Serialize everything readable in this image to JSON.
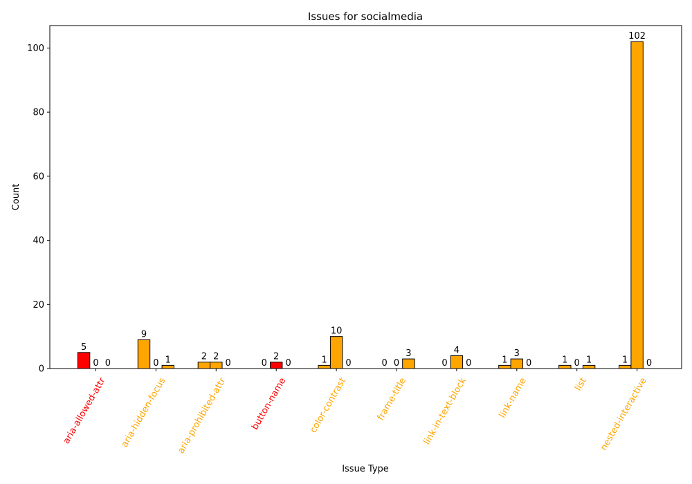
{
  "chart_data": {
    "type": "bar",
    "title": "Issues for socialmedia",
    "xlabel": "Issue Type",
    "ylabel": "Count",
    "ylim": [
      0,
      107
    ],
    "yticks": [
      0,
      20,
      40,
      60,
      80,
      100
    ],
    "grid": false,
    "categories": [
      "aria-allowed-attr",
      "aria-hidden-focus",
      "aria-prohibited-attr",
      "button-name",
      "color-contrast",
      "frame-title",
      "link-in-text-block",
      "link-name",
      "list",
      "nested-interactive"
    ],
    "category_colors": [
      "#ff0000",
      "#ffa500",
      "#ffa500",
      "#ff0000",
      "#ffa500",
      "#ffa500",
      "#ffa500",
      "#ffa500",
      "#ffa500",
      "#ffa500"
    ],
    "series": [
      {
        "values": [
          5,
          9,
          2,
          0,
          1,
          0,
          0,
          1,
          1,
          1
        ]
      },
      {
        "values": [
          0,
          0,
          2,
          2,
          10,
          0,
          4,
          3,
          0,
          102
        ]
      },
      {
        "values": [
          0,
          1,
          0,
          0,
          0,
          3,
          0,
          0,
          1,
          0
        ]
      }
    ]
  }
}
